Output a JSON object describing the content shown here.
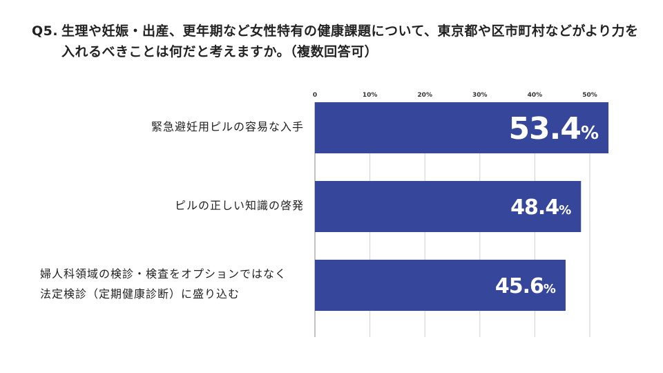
{
  "question": {
    "number": "Q5.",
    "text": "生理や妊娠・出産、更年期など女性特有の健康課題について、東京都や区市町村などがより力を入れるべきことは何だと考えますか。（複数回答可）"
  },
  "chart_data": {
    "type": "bar",
    "orientation": "horizontal",
    "categories": [
      "緊急避妊用ピルの容易な入手",
      "ピルの正しい知識の啓発",
      "婦人科領域の検診・検査をオプションではなく法定検診（定期健康診断）に盛り込む"
    ],
    "category_lines": [
      [
        "緊急避妊用ピルの容易な入手"
      ],
      [
        "ピルの正しい知識の啓発"
      ],
      [
        "婦人科領域の検診・検査をオプションではなく",
        "法定検診（定期健康診断）に盛り込む"
      ]
    ],
    "values": [
      53.4,
      48.4,
      45.6
    ],
    "value_labels": [
      "53.4",
      "48.4",
      "45.6"
    ],
    "unit": "%",
    "xlim": [
      0,
      53.4
    ],
    "x_ticks": [
      "0",
      "10%",
      "20%",
      "30%",
      "40%",
      "50%"
    ],
    "x_tick_values": [
      0,
      10,
      20,
      30,
      40,
      50
    ],
    "grid": true,
    "bar_color": "#35469b",
    "label_color": "#ffffff"
  }
}
